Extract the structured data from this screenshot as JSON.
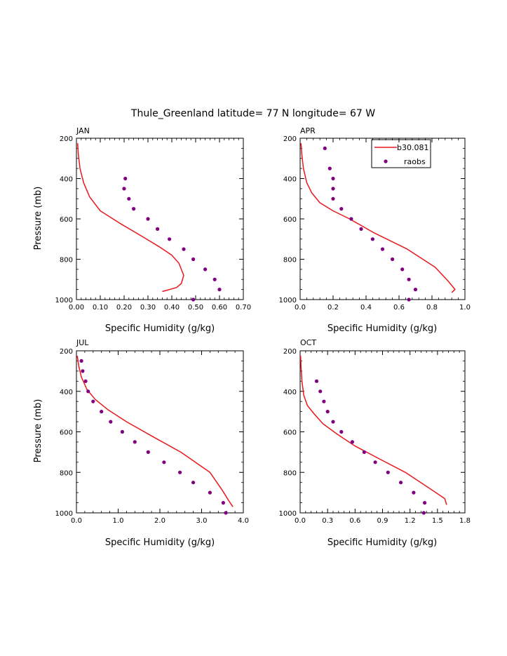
{
  "title": "Thule_Greenland  latitude= 77 N longitude= 67 W",
  "colors": {
    "model": "#e8191c",
    "obs": "#800080",
    "axis": "#000000"
  },
  "legend": {
    "model_label": "b30.081",
    "obs_label": "raobs"
  },
  "chart_data": [
    {
      "type": "line",
      "panel": "JAN",
      "xlabel": "Specific Humidity (g/kg)",
      "ylabel": "Pressure (mb)",
      "xlim": [
        0,
        0.7
      ],
      "ylim": [
        200,
        1000
      ],
      "xticks": [
        "0.00",
        "0.10",
        "0.20",
        "0.30",
        "0.40",
        "0.50",
        "0.60",
        "0.70"
      ],
      "yticks": [
        "200",
        "400",
        "600",
        "800",
        "1000"
      ],
      "series": [
        {
          "name": "b30.081",
          "kind": "line",
          "x": [
            0.005,
            0.008,
            0.015,
            0.03,
            0.055,
            0.1,
            0.18,
            0.28,
            0.35,
            0.4,
            0.43,
            0.45,
            0.44,
            0.42,
            0.36
          ],
          "y": [
            225,
            280,
            350,
            420,
            490,
            560,
            620,
            690,
            740,
            780,
            820,
            880,
            920,
            940,
            960
          ]
        },
        {
          "name": "raobs",
          "kind": "scatter",
          "x": [
            0.205,
            0.2,
            0.22,
            0.24,
            0.3,
            0.34,
            0.39,
            0.45,
            0.49,
            0.54,
            0.58,
            0.6,
            0.49
          ],
          "y": [
            400,
            450,
            500,
            550,
            600,
            650,
            700,
            750,
            800,
            850,
            900,
            950,
            1000
          ]
        }
      ]
    },
    {
      "type": "line",
      "panel": "APR",
      "xlabel": "Specific Humidity (g/kg)",
      "ylabel": "",
      "xlim": [
        0,
        1.0
      ],
      "ylim": [
        200,
        1000
      ],
      "xticks": [
        "0.0",
        "0.2",
        "0.4",
        "0.6",
        "0.8",
        "1.0"
      ],
      "yticks": [
        "200",
        "400",
        "600",
        "800",
        "1000"
      ],
      "series": [
        {
          "name": "b30.081",
          "kind": "line",
          "x": [
            0.005,
            0.01,
            0.02,
            0.04,
            0.07,
            0.12,
            0.2,
            0.3,
            0.45,
            0.65,
            0.82,
            0.9,
            0.94,
            0.92
          ],
          "y": [
            225,
            280,
            350,
            420,
            470,
            520,
            560,
            600,
            670,
            750,
            840,
            910,
            950,
            965
          ]
        },
        {
          "name": "raobs",
          "kind": "scatter",
          "x": [
            0.15,
            0.18,
            0.2,
            0.2,
            0.2,
            0.25,
            0.31,
            0.37,
            0.44,
            0.5,
            0.56,
            0.62,
            0.66,
            0.7,
            0.66
          ],
          "y": [
            250,
            350,
            400,
            450,
            500,
            550,
            600,
            650,
            700,
            750,
            800,
            850,
            900,
            950,
            1000
          ]
        }
      ]
    },
    {
      "type": "line",
      "panel": "JUL",
      "xlabel": "Specific Humidity (g/kg)",
      "ylabel": "Pressure (mb)",
      "xlim": [
        0,
        4.0
      ],
      "ylim": [
        200,
        1000
      ],
      "xticks": [
        "0.0",
        "1.0",
        "2.0",
        "3.0",
        "4.0"
      ],
      "yticks": [
        "200",
        "400",
        "600",
        "800",
        "1000"
      ],
      "series": [
        {
          "name": "b30.081",
          "kind": "line",
          "x": [
            0.02,
            0.06,
            0.12,
            0.25,
            0.45,
            0.75,
            1.2,
            1.8,
            2.5,
            3.2,
            3.5,
            3.65,
            3.75
          ],
          "y": [
            225,
            280,
            330,
            390,
            440,
            490,
            550,
            620,
            700,
            800,
            890,
            940,
            970
          ]
        },
        {
          "name": "raobs",
          "kind": "scatter",
          "x": [
            0.12,
            0.15,
            0.22,
            0.28,
            0.4,
            0.6,
            0.82,
            1.1,
            1.4,
            1.72,
            2.1,
            2.48,
            2.8,
            3.2,
            3.52,
            3.58
          ],
          "y": [
            250,
            300,
            350,
            400,
            450,
            500,
            550,
            600,
            650,
            700,
            750,
            800,
            850,
            900,
            950,
            1000
          ]
        }
      ]
    },
    {
      "type": "line",
      "panel": "OCT",
      "xlabel": "Specific Humidity (g/kg)",
      "ylabel": "",
      "xlim": [
        0,
        1.8
      ],
      "ylim": [
        200,
        1000
      ],
      "xticks": [
        "0.0",
        "0.3",
        "0.6",
        "0.9",
        "1.2",
        "1.5",
        "1.8"
      ],
      "yticks": [
        "200",
        "400",
        "600",
        "800",
        "1000"
      ],
      "series": [
        {
          "name": "b30.081",
          "kind": "line",
          "x": [
            0.005,
            0.01,
            0.02,
            0.04,
            0.08,
            0.15,
            0.25,
            0.4,
            0.6,
            0.85,
            1.15,
            1.45,
            1.58,
            1.6
          ],
          "y": [
            225,
            280,
            350,
            420,
            470,
            510,
            560,
            610,
            670,
            730,
            800,
            890,
            930,
            960
          ]
        },
        {
          "name": "raobs",
          "kind": "scatter",
          "x": [
            0.18,
            0.22,
            0.26,
            0.3,
            0.36,
            0.45,
            0.57,
            0.7,
            0.82,
            0.96,
            1.1,
            1.24,
            1.36,
            1.35
          ],
          "y": [
            350,
            400,
            450,
            500,
            550,
            600,
            650,
            700,
            750,
            800,
            850,
            900,
            950,
            1000
          ]
        }
      ]
    }
  ]
}
